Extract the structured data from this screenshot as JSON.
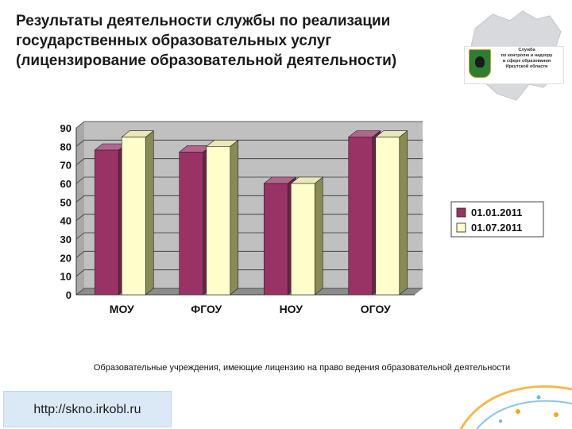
{
  "title_lines": [
    "Результаты деятельности службы по реализации",
    "государственных образовательных услуг",
    "(лицензирование образовательной деятельности)"
  ],
  "logo": {
    "lines": [
      "Служба",
      "по контролю и надзору",
      "в сфере образования",
      "Иркутской области"
    ]
  },
  "caption": "Образовательные учреждения, имеющие лицензию на право ведения образовательной деятельности",
  "url": "http://skno.irkobl.ru",
  "colors": {
    "series1": "#993366",
    "series2": "#ffffcc",
    "wall": "#c0c0c0",
    "floor": "#8c8c8c",
    "deco_orange": "#f5a623",
    "deco_blue": "#6fb7e0"
  },
  "chart_data": {
    "type": "bar",
    "categories": [
      "МОУ",
      "ФГОУ",
      "НОУ",
      "ОГОУ"
    ],
    "series": [
      {
        "name": "01.01.2011",
        "values": [
          78,
          77,
          60,
          85
        ]
      },
      {
        "name": "01.07.2011",
        "values": [
          85,
          80,
          60,
          85
        ]
      }
    ],
    "yticks": [
      0,
      10,
      20,
      30,
      40,
      50,
      60,
      70,
      80,
      90
    ],
    "ylim": [
      0,
      90
    ],
    "grid": true,
    "legend": "right",
    "style": "3d-column"
  }
}
